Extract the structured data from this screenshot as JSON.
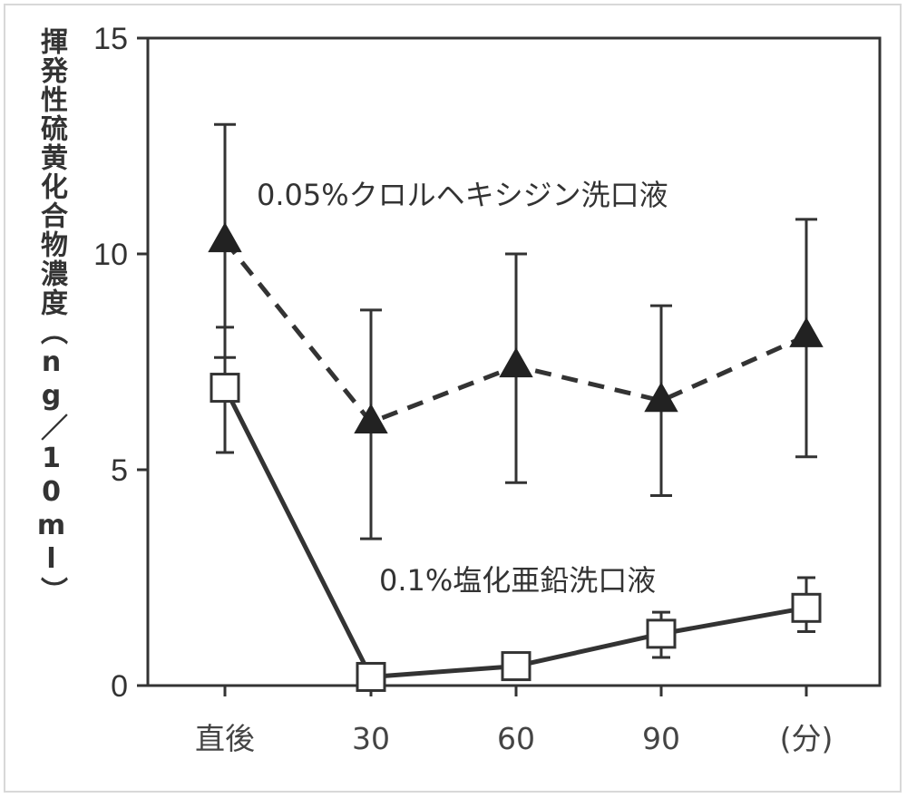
{
  "chart_data": {
    "type": "line",
    "title": "",
    "xlabel": "",
    "ylabel": "揮発性硫黄化合物濃度（ng／10ml）",
    "categories": [
      "直後",
      "30",
      "60",
      "90",
      "(分)"
    ],
    "ylim": [
      0,
      15
    ],
    "yticks": [
      0,
      5,
      10,
      15
    ],
    "grid": false,
    "series": [
      {
        "name": "0.05%クロルヘキシジン洗口液",
        "marker": "filled-triangle",
        "line_style": "dashed",
        "color": "#333333",
        "values": [
          10.3,
          6.1,
          7.4,
          6.6,
          8.1
        ],
        "error_high": [
          13.0,
          8.7,
          10.0,
          8.8,
          10.8
        ],
        "error_low": [
          7.6,
          3.4,
          4.7,
          4.4,
          5.3
        ]
      },
      {
        "name": "0.1%塩化亜鉛洗口液",
        "marker": "open-square",
        "line_style": "solid",
        "color": "#333333",
        "values": [
          6.9,
          0.2,
          0.45,
          1.2,
          1.8
        ],
        "error_high": [
          8.3,
          0.35,
          0.6,
          1.7,
          2.5
        ],
        "error_low": [
          5.4,
          0.1,
          0.3,
          0.65,
          1.25
        ]
      }
    ],
    "annotations": [
      {
        "text": "0.05%クロルヘキシジン洗口液",
        "series": 0
      },
      {
        "text": "0.1%塩化亜鉛洗口液",
        "series": 1
      }
    ]
  }
}
